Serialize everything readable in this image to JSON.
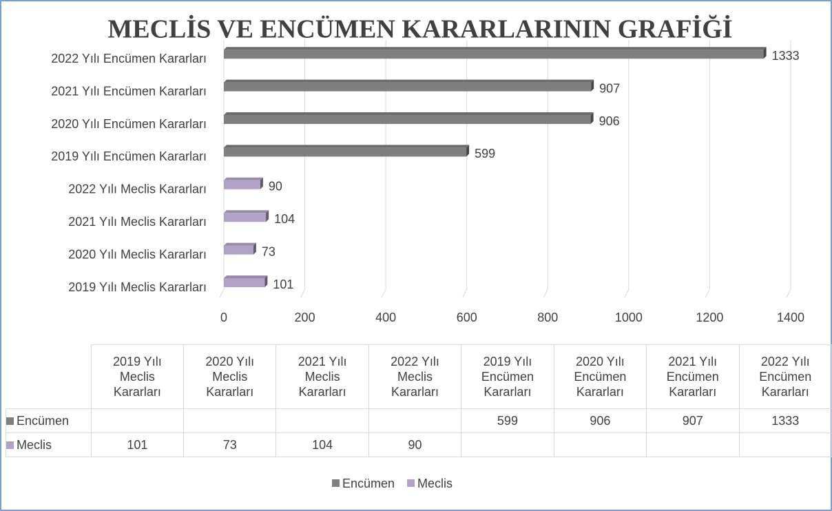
{
  "chart_data": {
    "type": "bar",
    "orientation": "horizontal",
    "title": "MECLİS VE ENCÜMEN KARARLARININ GRAFİĞİ",
    "categories": [
      "2019 Yılı Meclis Kararları",
      "2020 Yılı Meclis Kararları",
      "2021 Yılı Meclis Kararları",
      "2022 Yılı Meclis Kararları",
      "2019 Yılı Encümen Kararları",
      "2020 Yılı Encümen Kararları",
      "2021 Yılı Encümen Kararları",
      "2022 Yılı Encümen Kararları"
    ],
    "series": [
      {
        "name": "Encümen",
        "color": "#7f7f7f",
        "values": [
          null,
          null,
          null,
          null,
          599,
          906,
          907,
          1333
        ]
      },
      {
        "name": "Meclis",
        "color": "#b3a2c7",
        "values": [
          101,
          73,
          104,
          90,
          null,
          null,
          null,
          null
        ]
      }
    ],
    "xlim": [
      0,
      1400
    ],
    "xticks": [
      0,
      200,
      400,
      600,
      800,
      1000,
      1200,
      1400
    ],
    "grid": true,
    "legend": "bottom",
    "data_table": true
  }
}
